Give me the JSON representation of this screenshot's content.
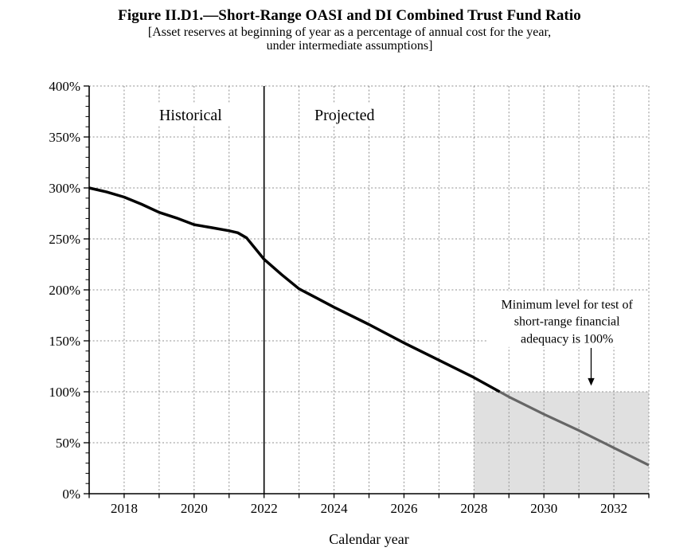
{
  "header": {
    "title": "Figure II.D1.—Short-Range OASI and DI Combined Trust Fund Ratio",
    "subtitle_line1": "[Asset reserves at beginning of year as a percentage of annual cost for the year,",
    "subtitle_line2": "under intermediate assumptions]"
  },
  "chart_data": {
    "type": "line",
    "title": "Figure II.D1.—Short-Range OASI and DI Combined Trust Fund Ratio",
    "xlabel": "Calendar year",
    "ylabel": "",
    "x_range": [
      2017,
      2033
    ],
    "y_range": [
      0,
      400
    ],
    "grid": "dotted",
    "grid_color": "#8f8f8f",
    "y_minor_tick_step": 10,
    "x_ticks": [
      {
        "value": 2018,
        "label": "2018"
      },
      {
        "value": 2020,
        "label": "2020"
      },
      {
        "value": 2022,
        "label": "2022"
      },
      {
        "value": 2024,
        "label": "2024"
      },
      {
        "value": 2026,
        "label": "2026"
      },
      {
        "value": 2028,
        "label": "2028"
      },
      {
        "value": 2030,
        "label": "2030"
      },
      {
        "value": 2032,
        "label": "2032"
      }
    ],
    "y_ticks": [
      {
        "value": 0,
        "label": "0%"
      },
      {
        "value": 50,
        "label": "50%"
      },
      {
        "value": 100,
        "label": "100%"
      },
      {
        "value": 150,
        "label": "150%"
      },
      {
        "value": 200,
        "label": "200%"
      },
      {
        "value": 250,
        "label": "250%"
      },
      {
        "value": 300,
        "label": "300%"
      },
      {
        "value": 350,
        "label": "350%"
      },
      {
        "value": 400,
        "label": "400%"
      }
    ],
    "series": [
      {
        "name": "OASI and DI combined trust fund ratio",
        "x": [
          2017,
          2017.5,
          2018,
          2018.5,
          2019,
          2019.5,
          2020,
          2020.5,
          2021,
          2021.25,
          2021.5,
          2022,
          2022.5,
          2023,
          2023.5,
          2024,
          2025,
          2026,
          2027,
          2028,
          2029,
          2030,
          2031,
          2032,
          2033
        ],
        "values": [
          300,
          296,
          291,
          284,
          276,
          270.5,
          264,
          261,
          258,
          256,
          251,
          230,
          215,
          201,
          192,
          183,
          166,
          148,
          131,
          114,
          95,
          78,
          62,
          45,
          28
        ]
      }
    ],
    "line_color": "#000000",
    "line_below_minimum_color": "#666666",
    "divider": {
      "x_year": 2022,
      "left_label": "Historical",
      "right_label": "Projected"
    },
    "region_labels": [
      {
        "label": "Historical",
        "x_year": 2019.9,
        "y_pct": 372
      },
      {
        "label": "Projected",
        "x_year": 2024.3,
        "y_pct": 372
      }
    ],
    "minimum_level_pct": 100,
    "shaded_region": {
      "x_start": 2028,
      "x_end": 2033,
      "y_start": 0,
      "y_end": 100,
      "color": "#e0e0e0"
    },
    "annotation": {
      "lines": [
        "Minimum level for test of",
        "short-range financial",
        "adequacy is 100%"
      ],
      "center_year": 2030.66,
      "line_y_pcts": [
        186,
        169.5,
        152.5
      ],
      "arrow_x_year": 2031.35,
      "arrow_from_pct": 143,
      "arrow_to_pct": 106
    }
  }
}
